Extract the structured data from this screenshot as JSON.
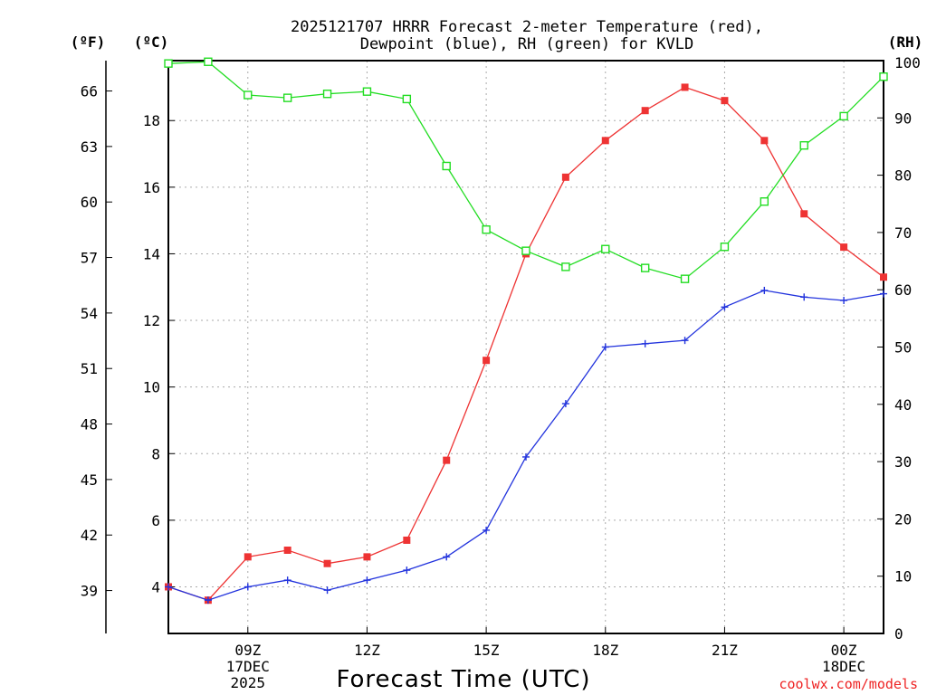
{
  "chart_data": {
    "type": "line",
    "title_lines": [
      "2025121707 HRRR Forecast 2-meter Temperature (red),",
      "Dewpoint (blue), RH (green) for KVLD"
    ],
    "axis_units": {
      "fahrenheit": "(ºF)",
      "celsius": "(ºC)",
      "rh": "(RH)"
    },
    "xlabel": "Forecast Time (UTC)",
    "credit": "coolwx.com/models",
    "x_range_hours": [
      7,
      25
    ],
    "x_ticks": [
      {
        "hour": 9,
        "lines": [
          "09Z",
          "17DEC",
          "2025"
        ]
      },
      {
        "hour": 12,
        "lines": [
          "12Z"
        ]
      },
      {
        "hour": 15,
        "lines": [
          "15Z"
        ]
      },
      {
        "hour": 18,
        "lines": [
          "18Z"
        ]
      },
      {
        "hour": 21,
        "lines": [
          "21Z"
        ]
      },
      {
        "hour": 24,
        "lines": [
          "00Z",
          "18DEC"
        ]
      }
    ],
    "celsius_axis": {
      "range": [
        2.6,
        19.8
      ],
      "ticks": [
        4,
        6,
        8,
        10,
        12,
        14,
        16,
        18
      ]
    },
    "fahrenheit_axis": {
      "ticks": [
        39,
        42,
        45,
        48,
        51,
        54,
        57,
        60,
        63,
        66
      ]
    },
    "rh_axis": {
      "range": [
        0,
        100
      ],
      "ticks": [
        0,
        10,
        20,
        30,
        40,
        50,
        60,
        70,
        80,
        90,
        100
      ]
    },
    "grid": true,
    "x": [
      7,
      8,
      9,
      10,
      11,
      12,
      13,
      14,
      15,
      16,
      17,
      18,
      19,
      20,
      21,
      22,
      23,
      24,
      25
    ],
    "series": [
      {
        "name": "Temperature",
        "unit": "C",
        "color": "#ee3333",
        "marker": "filled-square",
        "values": [
          4.0,
          3.6,
          4.9,
          5.1,
          4.7,
          4.9,
          5.4,
          7.8,
          10.8,
          14.0,
          16.3,
          17.4,
          18.3,
          19.0,
          18.6,
          17.4,
          15.2,
          14.2,
          13.3
        ]
      },
      {
        "name": "Dewpoint",
        "unit": "C",
        "color": "#2233dd",
        "marker": "plus",
        "values": [
          4.0,
          3.6,
          4.0,
          4.2,
          3.9,
          4.2,
          4.5,
          4.9,
          5.7,
          7.9,
          9.5,
          11.2,
          11.3,
          11.4,
          12.4,
          12.9,
          12.7,
          12.6,
          12.8
        ]
      },
      {
        "name": "Relative Humidity",
        "unit": "%",
        "color": "#22dd22",
        "marker": "open-square",
        "values": [
          99.5,
          99.8,
          94.0,
          93.5,
          94.2,
          94.6,
          93.3,
          81.6,
          70.5,
          66.8,
          64.0,
          67.1,
          63.8,
          61.9,
          67.5,
          75.4,
          85.2,
          90.3,
          97.2
        ]
      }
    ]
  }
}
